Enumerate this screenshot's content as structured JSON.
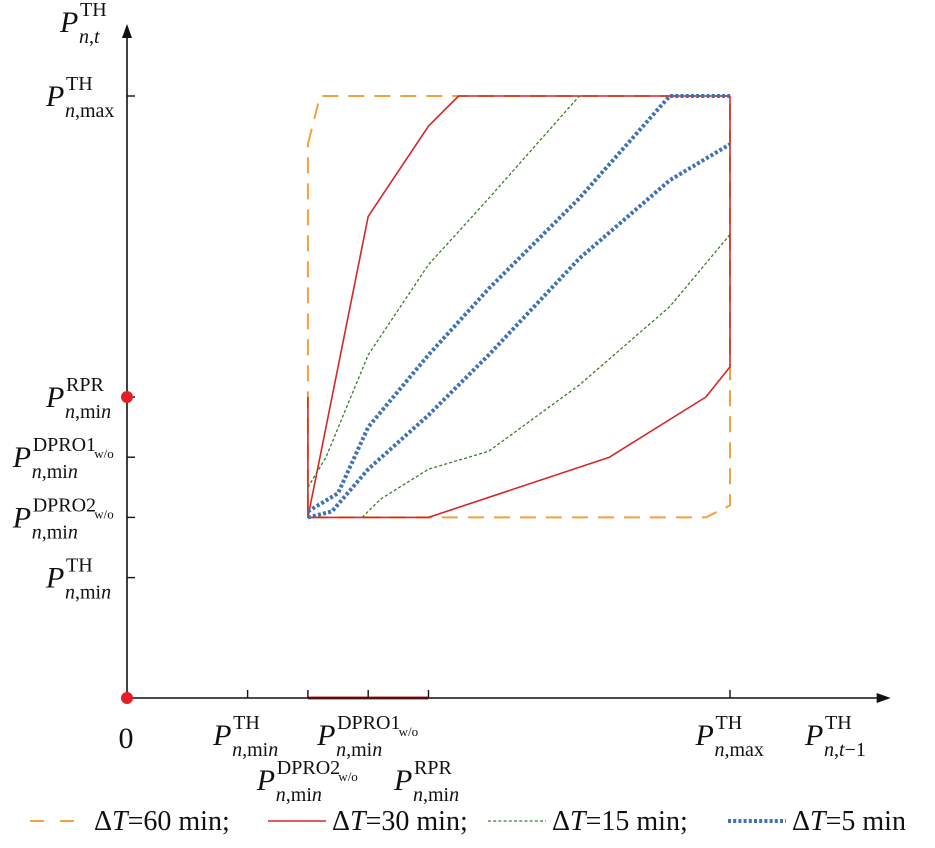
{
  "chart_data": {
    "type": "line",
    "title": "",
    "x_axis": {
      "label_main": "P",
      "label_sup": "TH",
      "label_sub": "n,t−1"
    },
    "y_axis": {
      "label_main": "P",
      "label_sup": "TH",
      "label_sub": "n,t"
    },
    "origin_label": "0",
    "xlim": [
      0,
      6.1
    ],
    "ylim": [
      0,
      5.1
    ],
    "x_ticks": [
      {
        "value": 1.0,
        "main": "P",
        "sup": "TH",
        "sub": "n,min",
        "row": 1
      },
      {
        "value": 1.5,
        "main": "P",
        "sup": "DPRO2",
        "supsub": "w/o",
        "sub": "n,min",
        "row": 2
      },
      {
        "value": 2.0,
        "main": "P",
        "sup": "DPRO1",
        "supsub": "w/o",
        "sub": "n,min",
        "row": 1
      },
      {
        "value": 2.5,
        "main": "P",
        "sup": "RPR",
        "sub": "n,min",
        "row": 2
      },
      {
        "value": 5.0,
        "main": "P",
        "sup": "TH",
        "sub": "n,max",
        "row": 1
      }
    ],
    "y_ticks": [
      {
        "value": 1.0,
        "main": "P",
        "sup": "TH",
        "sub": "n,min"
      },
      {
        "value": 1.5,
        "main": "P",
        "sup": "DPRO2",
        "supsub": "w/o",
        "sub": "n,min"
      },
      {
        "value": 2.0,
        "main": "P",
        "sup": "DPRO1",
        "supsub": "w/o",
        "sub": "n,min"
      },
      {
        "value": 2.5,
        "main": "P",
        "sup": "RPR",
        "sub": "n,min"
      },
      {
        "value": 5.0,
        "main": "P",
        "sup": "TH",
        "sub": "n,max"
      }
    ],
    "markers": [
      {
        "x": 0,
        "y": 0,
        "color": "#e31e24"
      },
      {
        "x": 0,
        "y": 2.5,
        "color": "#e31e24"
      }
    ],
    "x_highlight": {
      "from": 1.5,
      "to": 2.5,
      "color": "#d62728"
    },
    "series": [
      {
        "name": "ΔT=60 min",
        "color": "#f0a23c",
        "style": "dashed",
        "x": [
          1.5,
          1.6,
          5.0,
          5.0,
          4.8,
          1.5,
          1.5
        ],
        "y": [
          4.6,
          5.0,
          5.0,
          1.6,
          1.5,
          1.5,
          4.6
        ]
      },
      {
        "name": "ΔT=30 min",
        "color": "#d62728",
        "style": "solid",
        "x": [
          1.5,
          1.5,
          2.0,
          2.5,
          2.75,
          5.0,
          5.0,
          4.8,
          4.0,
          2.5,
          1.5
        ],
        "y": [
          2.5,
          1.5,
          4.0,
          4.75,
          5.0,
          5.0,
          2.75,
          2.5,
          2.0,
          1.5,
          1.5
        ]
      },
      {
        "name": "ΔT=15 min",
        "color": "#3d7a2a",
        "style": "dotted-fine",
        "segments": [
          {
            "x": [
              1.5,
              1.65,
              2.0,
              2.5,
              3.0,
              3.75
            ],
            "y": [
              1.75,
              2.0,
              2.85,
              3.6,
              4.15,
              5.0
            ]
          },
          {
            "x": [
              1.95,
              2.1,
              2.5,
              3.0,
              3.75,
              4.5,
              5.0
            ],
            "y": [
              1.5,
              1.65,
              1.9,
              2.05,
              2.6,
              3.25,
              3.85
            ]
          }
        ]
      },
      {
        "name": "ΔT=5 min",
        "color": "#3f72b5",
        "style": "dotted-bold",
        "segments": [
          {
            "x": [
              1.5,
              1.75,
              2.0,
              2.5,
              3.0,
              3.75,
              4.5,
              5.0
            ],
            "y": [
              1.55,
              1.7,
              2.25,
              2.85,
              3.4,
              4.15,
              5.0,
              5.0
            ]
          },
          {
            "x": [
              1.5,
              1.7,
              2.0,
              2.5,
              3.0,
              3.75,
              4.5,
              5.0
            ],
            "y": [
              1.5,
              1.55,
              1.9,
              2.35,
              2.85,
              3.65,
              4.3,
              4.6
            ]
          }
        ]
      }
    ],
    "legend": {
      "placement": "bottom",
      "items": [
        {
          "delta": "Δ",
          "t": "T",
          "rest": "=60 min;",
          "color": "#f0a23c",
          "style": "dashed"
        },
        {
          "delta": "Δ",
          "t": "T",
          "rest": "=30 min;",
          "color": "#d62728",
          "style": "solid"
        },
        {
          "delta": "Δ",
          "t": "T",
          "rest": "=15 min;",
          "color": "#3d7a2a",
          "style": "dotted-fine"
        },
        {
          "delta": "Δ",
          "t": "T",
          "rest": "=5 min",
          "color": "#3f72b5",
          "style": "dotted-bold"
        }
      ]
    }
  }
}
